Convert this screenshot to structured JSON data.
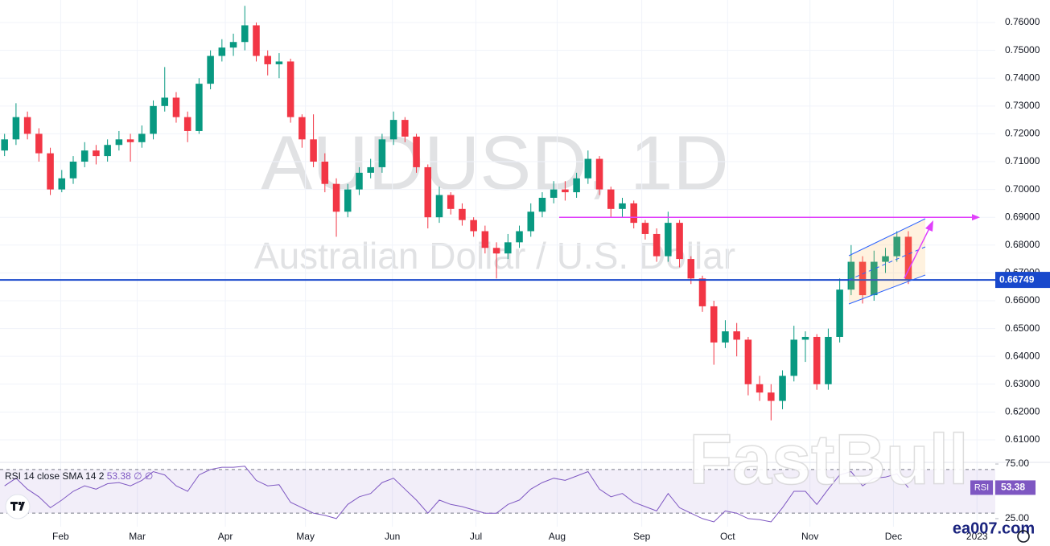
{
  "chart_data": [
    {
      "type": "candlestick",
      "title": "AUDUSD, 1D",
      "subtitle": "Australian Dollar / U.S. Dollar",
      "up_color": "#089981",
      "down_color": "#f23645",
      "candles": [
        [
          0.714,
          0.72,
          0.712,
          0.718
        ],
        [
          0.718,
          0.731,
          0.716,
          0.726
        ],
        [
          0.726,
          0.728,
          0.718,
          0.72
        ],
        [
          0.72,
          0.722,
          0.71,
          0.713
        ],
        [
          0.713,
          0.715,
          0.698,
          0.7
        ],
        [
          0.7,
          0.707,
          0.699,
          0.704
        ],
        [
          0.704,
          0.712,
          0.702,
          0.71
        ],
        [
          0.71,
          0.717,
          0.708,
          0.714
        ],
        [
          0.714,
          0.716,
          0.709,
          0.712
        ],
        [
          0.712,
          0.718,
          0.71,
          0.716
        ],
        [
          0.716,
          0.721,
          0.714,
          0.718
        ],
        [
          0.718,
          0.72,
          0.71,
          0.717
        ],
        [
          0.717,
          0.723,
          0.715,
          0.72
        ],
        [
          0.72,
          0.732,
          0.718,
          0.73
        ],
        [
          0.73,
          0.744,
          0.728,
          0.733
        ],
        [
          0.733,
          0.735,
          0.724,
          0.726
        ],
        [
          0.726,
          0.728,
          0.717,
          0.721
        ],
        [
          0.721,
          0.74,
          0.72,
          0.738
        ],
        [
          0.738,
          0.75,
          0.736,
          0.748
        ],
        [
          0.748,
          0.754,
          0.746,
          0.751
        ],
        [
          0.751,
          0.756,
          0.748,
          0.753
        ],
        [
          0.753,
          0.766,
          0.75,
          0.759
        ],
        [
          0.759,
          0.76,
          0.746,
          0.748
        ],
        [
          0.748,
          0.75,
          0.741,
          0.745
        ],
        [
          0.745,
          0.749,
          0.74,
          0.746
        ],
        [
          0.746,
          0.747,
          0.724,
          0.726
        ],
        [
          0.726,
          0.727,
          0.715,
          0.718
        ],
        [
          0.718,
          0.727,
          0.708,
          0.71
        ],
        [
          0.71,
          0.713,
          0.699,
          0.702
        ],
        [
          0.702,
          0.704,
          0.683,
          0.692
        ],
        [
          0.692,
          0.702,
          0.69,
          0.7
        ],
        [
          0.7,
          0.708,
          0.698,
          0.706
        ],
        [
          0.706,
          0.711,
          0.704,
          0.708
        ],
        [
          0.708,
          0.72,
          0.706,
          0.718
        ],
        [
          0.718,
          0.728,
          0.716,
          0.725
        ],
        [
          0.725,
          0.726,
          0.717,
          0.719
        ],
        [
          0.719,
          0.72,
          0.706,
          0.708
        ],
        [
          0.708,
          0.709,
          0.686,
          0.69
        ],
        [
          0.69,
          0.701,
          0.688,
          0.698
        ],
        [
          0.698,
          0.699,
          0.691,
          0.693
        ],
        [
          0.693,
          0.695,
          0.687,
          0.689
        ],
        [
          0.689,
          0.69,
          0.683,
          0.685
        ],
        [
          0.685,
          0.687,
          0.677,
          0.679
        ],
        [
          0.679,
          0.681,
          0.668,
          0.677
        ],
        [
          0.677,
          0.684,
          0.675,
          0.681
        ],
        [
          0.681,
          0.687,
          0.679,
          0.685
        ],
        [
          0.685,
          0.695,
          0.683,
          0.692
        ],
        [
          0.692,
          0.699,
          0.69,
          0.697
        ],
        [
          0.697,
          0.703,
          0.695,
          0.7
        ],
        [
          0.7,
          0.703,
          0.696,
          0.699
        ],
        [
          0.699,
          0.706,
          0.697,
          0.704
        ],
        [
          0.704,
          0.714,
          0.702,
          0.711
        ],
        [
          0.711,
          0.712,
          0.698,
          0.7
        ],
        [
          0.7,
          0.701,
          0.69,
          0.693
        ],
        [
          0.693,
          0.697,
          0.69,
          0.695
        ],
        [
          0.695,
          0.696,
          0.686,
          0.688
        ],
        [
          0.688,
          0.689,
          0.682,
          0.684
        ],
        [
          0.684,
          0.686,
          0.674,
          0.676
        ],
        [
          0.676,
          0.692,
          0.674,
          0.688
        ],
        [
          0.688,
          0.689,
          0.672,
          0.675
        ],
        [
          0.675,
          0.676,
          0.666,
          0.668
        ],
        [
          0.668,
          0.669,
          0.656,
          0.658
        ],
        [
          0.658,
          0.66,
          0.637,
          0.645
        ],
        [
          0.645,
          0.653,
          0.643,
          0.649
        ],
        [
          0.649,
          0.652,
          0.64,
          0.646
        ],
        [
          0.646,
          0.647,
          0.626,
          0.63
        ],
        [
          0.63,
          0.633,
          0.624,
          0.627
        ],
        [
          0.627,
          0.63,
          0.617,
          0.624
        ],
        [
          0.624,
          0.635,
          0.621,
          0.633
        ],
        [
          0.633,
          0.651,
          0.631,
          0.646
        ],
        [
          0.646,
          0.649,
          0.638,
          0.647
        ],
        [
          0.647,
          0.648,
          0.628,
          0.63
        ],
        [
          0.63,
          0.65,
          0.628,
          0.647
        ],
        [
          0.647,
          0.668,
          0.645,
          0.664
        ],
        [
          0.664,
          0.68,
          0.662,
          0.674
        ],
        [
          0.674,
          0.676,
          0.659,
          0.662
        ],
        [
          0.662,
          0.678,
          0.66,
          0.674
        ],
        [
          0.674,
          0.679,
          0.67,
          0.676
        ],
        [
          0.676,
          0.685,
          0.674,
          0.683
        ],
        [
          0.683,
          0.685,
          0.666,
          0.6675
        ]
      ],
      "xlim": [
        -0.4,
        86.6
      ],
      "xticks": [
        {
          "value": 4.9,
          "label": "Feb"
        },
        {
          "value": 11.6,
          "label": "Mar"
        },
        {
          "value": 19.3,
          "label": "Apr"
        },
        {
          "value": 26.3,
          "label": "May"
        },
        {
          "value": 33.9,
          "label": "Jun"
        },
        {
          "value": 41.2,
          "label": "Jul"
        },
        {
          "value": 48.3,
          "label": "Aug"
        },
        {
          "value": 55.7,
          "label": "Sep"
        },
        {
          "value": 63.2,
          "label": "Oct"
        },
        {
          "value": 70.4,
          "label": "Nov"
        },
        {
          "value": 77.7,
          "label": "Dec"
        },
        {
          "value": 85.0,
          "label": "2023"
        }
      ],
      "ylim": [
        0.6019,
        0.7681
      ],
      "yticks": [
        {
          "value": 0.61,
          "label": "0.61000"
        },
        {
          "value": 0.62,
          "label": "0.62000"
        },
        {
          "value": 0.63,
          "label": "0.63000"
        },
        {
          "value": 0.64,
          "label": "0.64000"
        },
        {
          "value": 0.65,
          "label": "0.65000"
        },
        {
          "value": 0.66,
          "label": "0.66000"
        },
        {
          "value": 0.67,
          "label": "0.67000"
        },
        {
          "value": 0.68,
          "label": "0.68000"
        },
        {
          "value": 0.69,
          "label": "0.69000"
        },
        {
          "value": 0.7,
          "label": "0.70000"
        },
        {
          "value": 0.71,
          "label": "0.71000"
        },
        {
          "value": 0.72,
          "label": "0.72000"
        },
        {
          "value": 0.73,
          "label": "0.73000"
        },
        {
          "value": 0.74,
          "label": "0.74000"
        },
        {
          "value": 0.75,
          "label": "0.75000"
        },
        {
          "value": 0.76,
          "label": "0.76000"
        }
      ],
      "last_price": {
        "value": 0.66749,
        "label": "0.66749"
      },
      "last_price_color": "#1848cc",
      "hline": 0.69,
      "hline_color": "#e040fb",
      "grid": true
    },
    {
      "type": "line",
      "name": "RSI",
      "title": "RSI 14 close SMA 14 2",
      "header_values": [
        "∅",
        "∅"
      ],
      "color": "#7e57c2",
      "values": [
        55,
        62,
        52,
        45,
        35,
        42,
        50,
        55,
        52,
        57,
        58,
        55,
        60,
        68,
        65,
        55,
        50,
        65,
        70,
        72,
        72,
        73,
        60,
        55,
        56,
        40,
        35,
        30,
        28,
        25,
        38,
        45,
        48,
        58,
        62,
        52,
        42,
        30,
        42,
        38,
        36,
        33,
        30,
        30,
        38,
        42,
        52,
        58,
        62,
        60,
        64,
        68,
        52,
        45,
        48,
        40,
        36,
        32,
        48,
        35,
        30,
        25,
        22,
        32,
        30,
        25,
        24,
        22,
        35,
        50,
        50,
        38,
        52,
        65,
        68,
        55,
        62,
        63,
        66,
        53.38
      ],
      "ylim": [
        17.6,
        76.5
      ],
      "yticks": [
        {
          "value": 75,
          "label": "75.00"
        },
        {
          "value": 25,
          "label": "25.00"
        }
      ],
      "bands": [
        30,
        70
      ]
    }
  ],
  "watermarks": {
    "brand": "FastBull",
    "site": "ea007.com"
  }
}
